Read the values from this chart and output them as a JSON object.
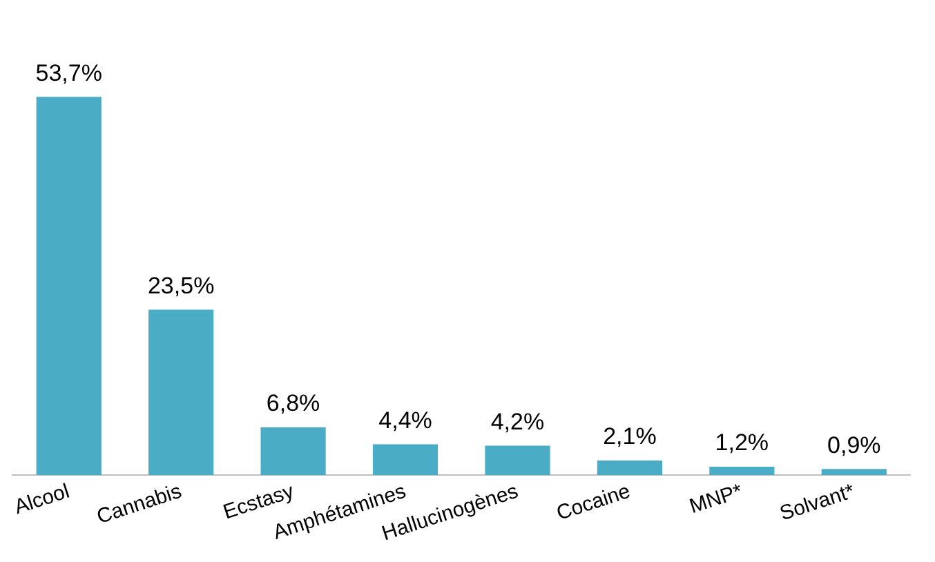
{
  "chart_data": {
    "type": "bar",
    "categories": [
      "Alcool",
      "Cannabis",
      "Ecstasy",
      "Amphétamines",
      "Hallucinogènes",
      "Cocaine",
      "MNP*",
      "Solvant*"
    ],
    "values": [
      53.7,
      23.5,
      6.8,
      4.4,
      4.2,
      2.1,
      1.2,
      0.9
    ],
    "value_labels": [
      "53,7%",
      "23,5%",
      "6,8%",
      "4,4%",
      "4,2%",
      "2,1%",
      "1,2%",
      "0,9%"
    ],
    "color": "#4bacc6",
    "grid": false,
    "legend": false
  }
}
